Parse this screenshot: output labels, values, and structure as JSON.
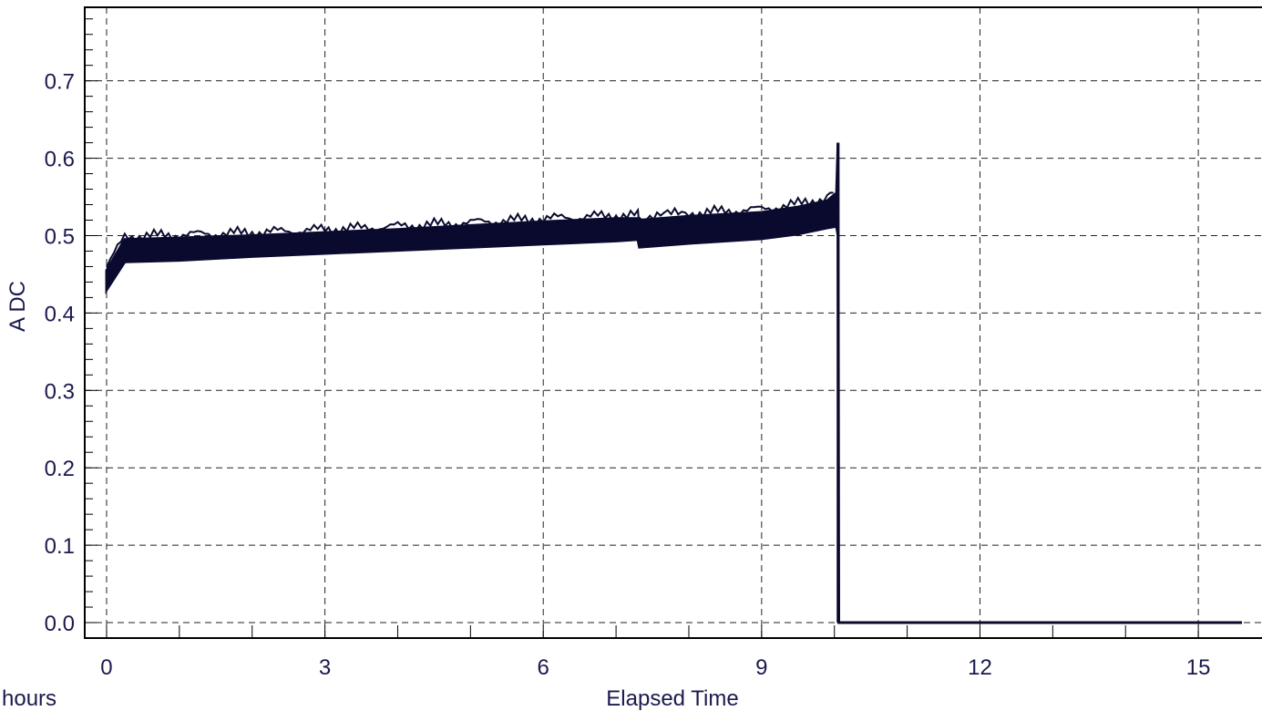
{
  "chart_data": {
    "type": "line",
    "xlabel": "Elapsed Time",
    "x_unit_label": "hours",
    "ylabel": "A DC",
    "xlim": [
      -0.3,
      15.9
    ],
    "ylim": [
      -0.02,
      0.795
    ],
    "x_ticks": [
      0,
      3,
      6,
      9,
      12,
      15
    ],
    "x_tick_labels": [
      "0",
      "3",
      "6",
      "9",
      "12",
      "15"
    ],
    "y_ticks": [
      0.0,
      0.1,
      0.2,
      0.3,
      0.4,
      0.5,
      0.6,
      0.7
    ],
    "y_tick_labels": [
      "0.0",
      "0.1",
      "0.2",
      "0.3",
      "0.4",
      "0.5",
      "0.6",
      "0.7"
    ],
    "grid": true,
    "series": [
      {
        "color": "#0a0a2e",
        "x": [
          0.0,
          0.25,
          1,
          2,
          3,
          4,
          5,
          6,
          7,
          7.3,
          7.32,
          8,
          9,
          9.5,
          9.9,
          10.03,
          10.05,
          10.06,
          11,
          12,
          13,
          14,
          15,
          15.6
        ],
        "y_low": [
          0.43,
          0.466,
          0.468,
          0.473,
          0.477,
          0.481,
          0.485,
          0.489,
          0.493,
          0.495,
          0.485,
          0.49,
          0.496,
          0.502,
          0.51,
          0.512,
          0.5,
          0.0,
          0.0,
          0.0,
          0.0,
          0.0,
          0.0,
          0.0
        ],
        "y_high": [
          0.455,
          0.495,
          0.497,
          0.5,
          0.504,
          0.508,
          0.513,
          0.518,
          0.522,
          0.522,
          0.52,
          0.525,
          0.53,
          0.537,
          0.545,
          0.555,
          0.62,
          0.0,
          0.0,
          0.0,
          0.0,
          0.0,
          0.0,
          0.0
        ]
      }
    ]
  }
}
